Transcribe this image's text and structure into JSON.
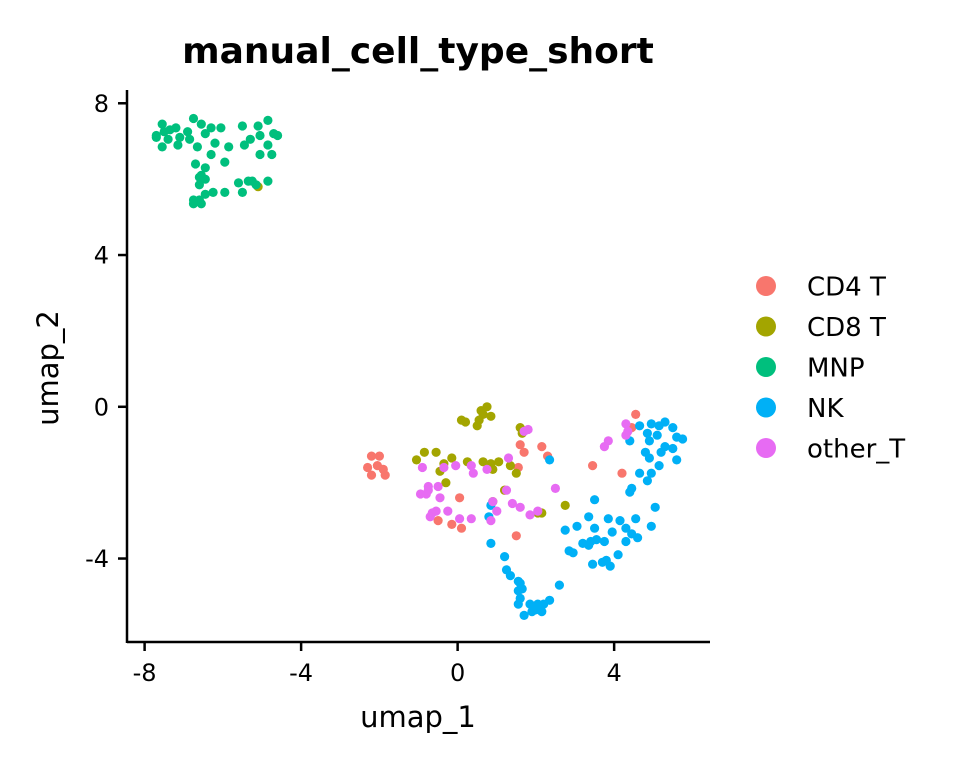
{
  "chart_data": {
    "type": "scatter",
    "title": "manual_cell_type_short",
    "xlabel": "umap_1",
    "ylabel": "umap_2",
    "xlim": [
      -8.45,
      6.45
    ],
    "ylim": [
      -6.2,
      8.35
    ],
    "xticks": [
      -8,
      -4,
      0,
      4
    ],
    "yticks": [
      -4,
      0,
      4,
      8
    ],
    "xtick_labels": [
      "-8",
      "-4",
      "0",
      "4"
    ],
    "ytick_labels": [
      "-4",
      "0",
      "4",
      "8"
    ],
    "grid": false,
    "legend_position": "right",
    "series": [
      {
        "name": "CD4 T",
        "color": "#F8766D",
        "points": [
          [
            -2.2,
            -1.3
          ],
          [
            -2.0,
            -1.3
          ],
          [
            -2.3,
            -1.6
          ],
          [
            -2.05,
            -1.55
          ],
          [
            -1.9,
            -1.65
          ],
          [
            -2.2,
            -1.8
          ],
          [
            -1.85,
            -1.8
          ],
          [
            0.05,
            -2.4
          ],
          [
            -0.5,
            -3.0
          ],
          [
            -0.15,
            -3.1
          ],
          [
            0.1,
            -3.2
          ],
          [
            1.5,
            -3.4
          ],
          [
            1.6,
            -1.0
          ],
          [
            1.7,
            -1.2
          ],
          [
            1.55,
            -1.6
          ],
          [
            2.15,
            -1.05
          ],
          [
            2.3,
            -1.3
          ],
          [
            3.45,
            -1.55
          ],
          [
            4.2,
            -1.75
          ],
          [
            4.45,
            -0.55
          ],
          [
            4.55,
            -0.2
          ],
          [
            1.2,
            -2.2
          ]
        ]
      },
      {
        "name": "CD8 T",
        "color": "#A3A500",
        "points": [
          [
            0.6,
            -0.1
          ],
          [
            0.75,
            0.0
          ],
          [
            0.65,
            -0.2
          ],
          [
            0.55,
            -0.35
          ],
          [
            0.85,
            -0.25
          ],
          [
            0.1,
            -0.35
          ],
          [
            0.2,
            -0.4
          ],
          [
            0.5,
            -0.5
          ],
          [
            -0.15,
            -1.35
          ],
          [
            -0.55,
            -1.2
          ],
          [
            -1.05,
            -1.4
          ],
          [
            -0.35,
            -1.5
          ],
          [
            -0.45,
            -1.7
          ],
          [
            -0.3,
            -2.0
          ],
          [
            1.6,
            -0.55
          ],
          [
            1.65,
            -0.7
          ],
          [
            0.85,
            -1.5
          ],
          [
            0.9,
            -1.65
          ],
          [
            1.35,
            -1.55
          ],
          [
            1.5,
            -1.75
          ],
          [
            1.2,
            -2.2
          ],
          [
            0.9,
            -2.5
          ],
          [
            2.05,
            -2.8
          ],
          [
            2.75,
            -2.6
          ],
          [
            -5.1,
            5.8
          ],
          [
            1.05,
            -1.45
          ],
          [
            0.25,
            -1.45
          ],
          [
            0.65,
            -1.45
          ],
          [
            2.15,
            -2.8
          ],
          [
            -0.85,
            -1.2
          ]
        ]
      },
      {
        "name": "MNP",
        "color": "#00BF7D",
        "points": [
          [
            -7.55,
            7.45
          ],
          [
            -7.35,
            7.3
          ],
          [
            -7.2,
            7.35
          ],
          [
            -7.5,
            7.25
          ],
          [
            -7.7,
            7.15
          ],
          [
            -7.4,
            7.05
          ],
          [
            -7.1,
            7.1
          ],
          [
            -6.9,
            7.25
          ],
          [
            -6.75,
            7.6
          ],
          [
            -6.55,
            7.45
          ],
          [
            -6.3,
            7.35
          ],
          [
            -6.05,
            7.35
          ],
          [
            -6.45,
            7.2
          ],
          [
            -6.2,
            6.95
          ],
          [
            -6.85,
            7.05
          ],
          [
            -6.65,
            6.85
          ],
          [
            -7.15,
            6.9
          ],
          [
            -7.55,
            6.85
          ],
          [
            -7.7,
            7.1
          ],
          [
            -6.3,
            6.65
          ],
          [
            -6.45,
            6.3
          ],
          [
            -6.7,
            6.4
          ],
          [
            -5.85,
            6.85
          ],
          [
            -5.3,
            7.05
          ],
          [
            -5.5,
            7.4
          ],
          [
            -5.1,
            7.4
          ],
          [
            -4.85,
            7.55
          ],
          [
            -4.7,
            7.2
          ],
          [
            -4.6,
            7.15
          ],
          [
            -5.05,
            7.15
          ],
          [
            -4.85,
            6.9
          ],
          [
            -4.75,
            6.65
          ],
          [
            -5.05,
            6.65
          ],
          [
            -5.45,
            6.9
          ],
          [
            -5.95,
            6.45
          ],
          [
            -6.55,
            6.1
          ],
          [
            -6.45,
            6.0
          ],
          [
            -6.6,
            5.85
          ],
          [
            -6.25,
            5.65
          ],
          [
            -5.6,
            5.9
          ],
          [
            -5.35,
            5.95
          ],
          [
            -5.25,
            5.95
          ],
          [
            -5.15,
            5.85
          ],
          [
            -5.5,
            5.65
          ],
          [
            -5.95,
            5.65
          ],
          [
            -6.45,
            5.6
          ],
          [
            -6.6,
            5.45
          ],
          [
            -6.75,
            5.45
          ],
          [
            -6.55,
            5.35
          ],
          [
            -6.75,
            5.35
          ],
          [
            -4.85,
            5.95
          ],
          [
            -6.6,
            6.05
          ]
        ]
      },
      {
        "name": "NK",
        "color": "#00B0F6",
        "points": [
          [
            4.65,
            -0.5
          ],
          [
            4.95,
            -0.45
          ],
          [
            5.15,
            -0.5
          ],
          [
            5.3,
            -0.4
          ],
          [
            5.5,
            -0.55
          ],
          [
            4.85,
            -0.7
          ],
          [
            5.1,
            -0.75
          ],
          [
            4.9,
            -0.9
          ],
          [
            5.6,
            -0.8
          ],
          [
            5.75,
            -0.85
          ],
          [
            4.4,
            -0.9
          ],
          [
            5.3,
            -1.05
          ],
          [
            5.2,
            -1.2
          ],
          [
            5.5,
            -1.1
          ],
          [
            4.8,
            -1.2
          ],
          [
            4.9,
            -1.35
          ],
          [
            5.15,
            -1.55
          ],
          [
            5.6,
            -1.4
          ],
          [
            4.65,
            -1.75
          ],
          [
            4.95,
            -1.75
          ],
          [
            4.85,
            -1.95
          ],
          [
            4.45,
            -2.15
          ],
          [
            4.4,
            -2.25
          ],
          [
            5.05,
            -2.65
          ],
          [
            4.55,
            -2.95
          ],
          [
            4.95,
            -3.15
          ],
          [
            4.15,
            -3.0
          ],
          [
            4.3,
            -3.2
          ],
          [
            4.45,
            -3.35
          ],
          [
            4.6,
            -3.45
          ],
          [
            3.35,
            -2.9
          ],
          [
            3.5,
            -3.2
          ],
          [
            3.85,
            -2.95
          ],
          [
            3.95,
            -3.3
          ],
          [
            3.55,
            -3.5
          ],
          [
            3.4,
            -3.55
          ],
          [
            3.2,
            -3.6
          ],
          [
            3.05,
            -3.15
          ],
          [
            3.35,
            -3.65
          ],
          [
            3.75,
            -3.55
          ],
          [
            2.95,
            -3.85
          ],
          [
            3.5,
            -2.45
          ],
          [
            2.35,
            -1.4
          ],
          [
            2.75,
            -3.25
          ],
          [
            2.85,
            -3.8
          ],
          [
            4.3,
            -3.55
          ],
          [
            3.45,
            -4.15
          ],
          [
            3.8,
            -4.05
          ],
          [
            3.9,
            -4.2
          ],
          [
            4.1,
            -3.9
          ],
          [
            3.7,
            -4.1
          ],
          [
            0.85,
            -3.6
          ],
          [
            1.2,
            -3.95
          ],
          [
            1.25,
            -4.3
          ],
          [
            1.35,
            -4.45
          ],
          [
            1.55,
            -4.6
          ],
          [
            1.6,
            -4.65
          ],
          [
            1.65,
            -4.8
          ],
          [
            1.55,
            -4.85
          ],
          [
            1.6,
            -5.05
          ],
          [
            1.55,
            -5.2
          ],
          [
            1.85,
            -5.2
          ],
          [
            2.05,
            -5.2
          ],
          [
            2.2,
            -5.2
          ],
          [
            2.35,
            -5.1
          ],
          [
            2.0,
            -5.35
          ],
          [
            2.15,
            -5.4
          ],
          [
            1.9,
            -5.4
          ],
          [
            1.7,
            -5.5
          ],
          [
            2.6,
            -4.7
          ],
          [
            0.8,
            -2.9
          ],
          [
            0.85,
            -2.6
          ]
        ]
      },
      {
        "name": "other_T",
        "color": "#E76BF3",
        "points": [
          [
            4.3,
            -0.45
          ],
          [
            4.35,
            -0.65
          ],
          [
            4.3,
            -0.75
          ],
          [
            3.85,
            -0.9
          ],
          [
            3.75,
            -1.05
          ],
          [
            1.8,
            -0.6
          ],
          [
            1.7,
            -0.65
          ],
          [
            -0.05,
            -1.55
          ],
          [
            0.35,
            -1.55
          ],
          [
            0.75,
            -1.65
          ],
          [
            0.4,
            -1.75
          ],
          [
            -0.35,
            -1.6
          ],
          [
            -0.5,
            -2.1
          ],
          [
            -0.45,
            -2.4
          ],
          [
            -0.8,
            -2.3
          ],
          [
            -0.95,
            -2.3
          ],
          [
            -0.75,
            -2.2
          ],
          [
            -0.65,
            -2.8
          ],
          [
            -0.7,
            -2.9
          ],
          [
            -0.55,
            -2.75
          ],
          [
            -0.25,
            -2.75
          ],
          [
            0.35,
            -2.95
          ],
          [
            0.05,
            -2.95
          ],
          [
            1.0,
            -2.75
          ],
          [
            0.9,
            -2.5
          ],
          [
            0.85,
            -3.0
          ],
          [
            1.25,
            -2.2
          ],
          [
            1.4,
            -2.55
          ],
          [
            1.6,
            -2.65
          ],
          [
            1.85,
            -2.85
          ],
          [
            2.05,
            -2.75
          ],
          [
            2.5,
            -2.15
          ],
          [
            -0.9,
            -1.6
          ],
          [
            -0.75,
            -2.1
          ],
          [
            1.3,
            -1.35
          ]
        ]
      }
    ]
  }
}
